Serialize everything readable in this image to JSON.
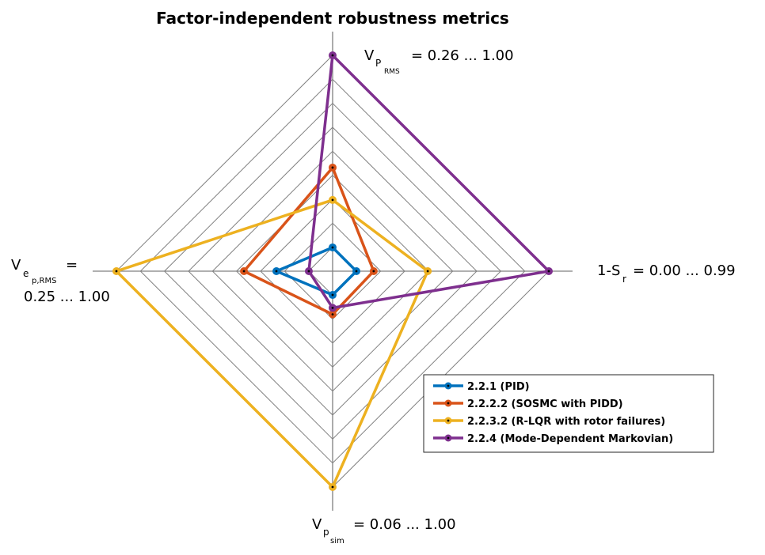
{
  "chart_data": {
    "type": "radar",
    "title": "Factor-independent robustness metrics",
    "axes": [
      {
        "direction": "top",
        "label_main": "V",
        "label_sub": "P",
        "label_subsub": "RMS",
        "label_eq": "=  0.26 ...  1.00",
        "range": [
          0.26,
          1.0
        ]
      },
      {
        "direction": "right",
        "label_main": "1-S",
        "label_sub": "r",
        "label_eq": "=  0.00 ...  0.99",
        "range": [
          0.0,
          0.99
        ]
      },
      {
        "direction": "bottom",
        "label_main": "V",
        "label_sub": "p",
        "label_subsub": "sim",
        "label_eq": "=  0.06 ...  1.00",
        "range": [
          0.06,
          1.0
        ]
      },
      {
        "direction": "left",
        "label_main": "V",
        "label_sub": "e",
        "label_subsub": "p,RMS",
        "label_eq": "=",
        "label_range": "0.25 ...  1.00",
        "range": [
          0.25,
          1.0
        ]
      }
    ],
    "rings": 9,
    "normalized_scale": "0 = axis minimum, 1 = axis maximum",
    "series": [
      {
        "name": "2.2.1 (PID)",
        "color": "#0072BD",
        "values": [
          0.11,
          0.11,
          0.11,
          0.26
        ]
      },
      {
        "name": "2.2.2.2 (SOSMC with PIDD)",
        "color": "#D95319",
        "values": [
          0.48,
          0.19,
          0.2,
          0.41
        ]
      },
      {
        "name": "2.2.3.2 (R-LQR with rotor failures)",
        "color": "#EDB120",
        "values": [
          0.33,
          0.44,
          1.0,
          1.0
        ]
      },
      {
        "name": "2.2.4 (Mode-Dependent Markovian)",
        "color": "#7E2F8E",
        "values": [
          1.0,
          1.0,
          0.17,
          0.11
        ]
      }
    ],
    "legend_position": "bottom-right"
  }
}
